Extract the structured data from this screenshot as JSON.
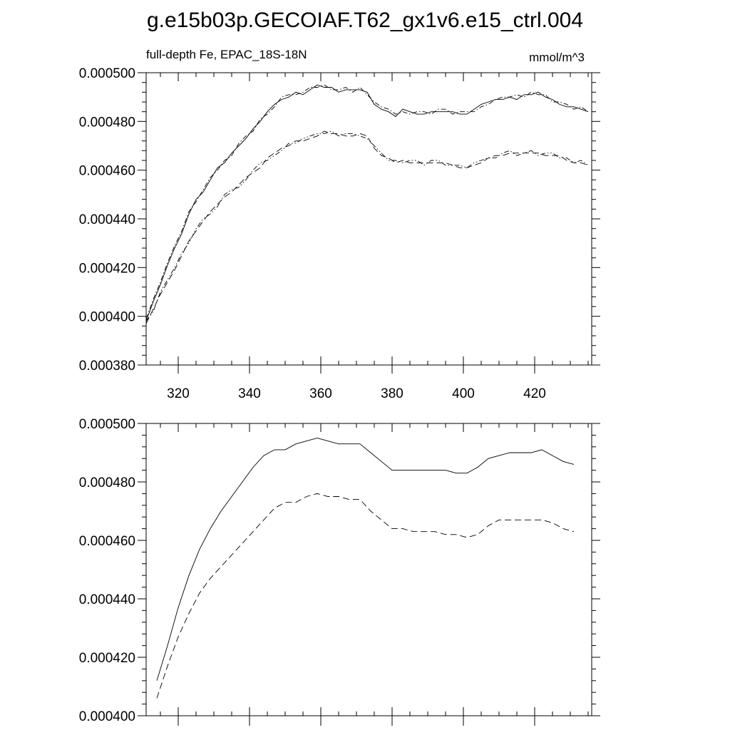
{
  "title": "g.e15b03p.GECOIAF.T62_gx1v6.e15_ctrl.004",
  "chart_data": [
    {
      "type": "line",
      "left_label": "full-depth Fe, EPAC_18S-18N",
      "right_label": "mmol/m^3",
      "xlim": [
        311,
        436
      ],
      "ylim": [
        0.00038,
        0.0005
      ],
      "x_ticks": [
        320,
        340,
        360,
        380,
        400,
        420
      ],
      "x_tick_labels": [
        "320",
        "340",
        "360",
        "380",
        "400",
        "420"
      ],
      "y_ticks": [
        0.00038,
        0.0004,
        0.00042,
        0.00044,
        0.00046,
        0.00048,
        0.0005
      ],
      "y_tick_labels": [
        "0.000380",
        "0.000400",
        "0.000420",
        "0.000440",
        "0.000460",
        "0.000480",
        "0.000500"
      ],
      "grid": false,
      "series": [
        {
          "style": "solid",
          "x": [
            311,
            313,
            315,
            317,
            319,
            321,
            323,
            325,
            327,
            329,
            331,
            333,
            335,
            337,
            339,
            341,
            343,
            345,
            347,
            349,
            351,
            353,
            355,
            357,
            359,
            361,
            363,
            365,
            367,
            369,
            371,
            373,
            375,
            377,
            379,
            381,
            383,
            385,
            387,
            389,
            391,
            393,
            395,
            397,
            399,
            401,
            403,
            405,
            407,
            409,
            411,
            413,
            415,
            417,
            419,
            421,
            423,
            425,
            427,
            429,
            431,
            433,
            435
          ],
          "y": [
            0.000398,
            0.000406,
            0.000413,
            0.000421,
            0.000428,
            0.000434,
            0.000442,
            0.000448,
            0.000451,
            0.000456,
            0.000461,
            0.000463,
            0.000467,
            0.00047,
            0.000473,
            0.000477,
            0.00048,
            0.000484,
            0.000487,
            0.000489,
            0.00049,
            0.000492,
            0.000491,
            0.000493,
            0.000495,
            0.000494,
            0.000494,
            0.000492,
            0.000493,
            0.000493,
            0.000493,
            0.000492,
            0.000487,
            0.000485,
            0.000484,
            0.000482,
            0.000485,
            0.000484,
            0.000483,
            0.000483,
            0.000484,
            0.000484,
            0.000484,
            0.000484,
            0.000483,
            0.000483,
            0.000485,
            0.000487,
            0.000488,
            0.000489,
            0.000489,
            0.00049,
            0.000489,
            0.000491,
            0.000491,
            0.000492,
            0.00049,
            0.000489,
            0.000487,
            0.000486,
            0.000486,
            0.000485,
            0.000484
          ]
        },
        {
          "style": "dash-dot",
          "x": [
            311,
            313,
            315,
            317,
            319,
            321,
            323,
            325,
            327,
            329,
            331,
            333,
            335,
            337,
            339,
            341,
            343,
            345,
            347,
            349,
            351,
            353,
            355,
            357,
            359,
            361,
            363,
            365,
            367,
            369,
            371,
            373,
            375,
            377,
            379,
            381,
            383,
            385,
            387,
            389,
            391,
            393,
            395,
            397,
            399,
            401,
            403,
            405,
            407,
            409,
            411,
            413,
            415,
            417,
            419,
            421,
            423,
            425,
            427,
            429,
            431,
            433,
            435
          ],
          "y": [
            0.000399,
            0.000407,
            0.000414,
            0.000422,
            0.000429,
            0.000435,
            0.000443,
            0.000447,
            0.000452,
            0.000457,
            0.00046,
            0.000464,
            0.000466,
            0.000471,
            0.000474,
            0.000476,
            0.000481,
            0.000483,
            0.000486,
            0.00049,
            0.000491,
            0.000491,
            0.000492,
            0.000494,
            0.000494,
            0.000495,
            0.000493,
            0.000493,
            0.000494,
            0.000492,
            0.000494,
            0.000491,
            0.000488,
            0.000486,
            0.000485,
            0.000483,
            0.000484,
            0.000483,
            0.000484,
            0.000484,
            0.000483,
            0.000485,
            0.000485,
            0.000483,
            0.000484,
            0.000484,
            0.000484,
            0.000486,
            0.000487,
            0.000489,
            0.00049,
            0.00049,
            0.000491,
            0.00049,
            0.000492,
            0.000491,
            0.000491,
            0.000488,
            0.000488,
            0.000487,
            0.000485,
            0.000486,
            0.000484
          ]
        },
        {
          "style": "dashed",
          "x": [
            311,
            313,
            315,
            317,
            319,
            321,
            323,
            325,
            327,
            329,
            331,
            333,
            335,
            337,
            339,
            341,
            343,
            345,
            347,
            349,
            351,
            353,
            355,
            357,
            359,
            361,
            363,
            365,
            367,
            369,
            371,
            373,
            375,
            377,
            379,
            381,
            383,
            385,
            387,
            389,
            391,
            393,
            395,
            397,
            399,
            401,
            403,
            405,
            407,
            409,
            411,
            413,
            415,
            417,
            419,
            421,
            423,
            425,
            427,
            429,
            431,
            433,
            435
          ],
          "y": [
            0.000397,
            0.000403,
            0.000409,
            0.000414,
            0.000419,
            0.000425,
            0.000431,
            0.000435,
            0.000439,
            0.000443,
            0.000446,
            0.000449,
            0.000451,
            0.000454,
            0.000457,
            0.000459,
            0.000461,
            0.000465,
            0.000467,
            0.000469,
            0.00047,
            0.000472,
            0.000472,
            0.000473,
            0.000474,
            0.000476,
            0.000475,
            0.000475,
            0.000474,
            0.000474,
            0.000475,
            0.000474,
            0.000469,
            0.000466,
            0.000465,
            0.000463,
            0.000464,
            0.000463,
            0.000463,
            0.000463,
            0.000463,
            0.000463,
            0.000463,
            0.000462,
            0.000461,
            0.000461,
            0.000462,
            0.000463,
            0.000465,
            0.000466,
            0.000466,
            0.000467,
            0.000467,
            0.000467,
            0.000467,
            0.000467,
            0.000466,
            0.000466,
            0.000466,
            0.000464,
            0.000463,
            0.000463,
            0.000462
          ]
        },
        {
          "style": "dash-dot-dot",
          "x": [
            311,
            313,
            315,
            317,
            319,
            321,
            323,
            325,
            327,
            329,
            331,
            333,
            335,
            337,
            339,
            341,
            343,
            345,
            347,
            349,
            351,
            353,
            355,
            357,
            359,
            361,
            363,
            365,
            367,
            369,
            371,
            373,
            375,
            377,
            379,
            381,
            383,
            385,
            387,
            389,
            391,
            393,
            395,
            397,
            399,
            401,
            403,
            405,
            407,
            409,
            411,
            413,
            415,
            417,
            419,
            421,
            423,
            425,
            427,
            429,
            431,
            433,
            435
          ],
          "y": [
            0.000398,
            0.000402,
            0.00041,
            0.000415,
            0.00042,
            0.000426,
            0.00043,
            0.000436,
            0.00044,
            0.000442,
            0.000445,
            0.00045,
            0.000452,
            0.000453,
            0.000456,
            0.00046,
            0.000463,
            0.000464,
            0.000466,
            0.000468,
            0.000471,
            0.000471,
            0.000473,
            0.000474,
            0.000475,
            0.000475,
            0.000476,
            0.000474,
            0.000475,
            0.000475,
            0.000474,
            0.000473,
            0.00047,
            0.000467,
            0.000464,
            0.000464,
            0.000463,
            0.000464,
            0.000464,
            0.000462,
            0.000464,
            0.000464,
            0.000462,
            0.000462,
            0.000462,
            0.000461,
            0.000463,
            0.000464,
            0.000465,
            0.000465,
            0.000467,
            0.000468,
            0.000466,
            0.000467,
            0.000468,
            0.000466,
            0.000467,
            0.000467,
            0.000465,
            0.000465,
            0.000463,
            0.000464,
            0.000462
          ]
        }
      ]
    },
    {
      "type": "line",
      "xlim": [
        311,
        436
      ],
      "ylim": [
        0.0004,
        0.0005
      ],
      "x_ticks": [
        320,
        340,
        360,
        380,
        400,
        420
      ],
      "y_ticks": [
        0.0004,
        0.00042,
        0.00044,
        0.00046,
        0.00048,
        0.0005
      ],
      "y_tick_labels": [
        "0.000400",
        "0.000420",
        "0.000440",
        "0.000460",
        "0.000480",
        "0.000500"
      ],
      "grid": false,
      "series": [
        {
          "style": "solid",
          "x": [
            314,
            317,
            320,
            323,
            326,
            329,
            332,
            335,
            338,
            341,
            344,
            347,
            350,
            353,
            356,
            359,
            362,
            365,
            368,
            371,
            374,
            377,
            380,
            383,
            386,
            389,
            392,
            395,
            398,
            401,
            404,
            407,
            410,
            413,
            416,
            419,
            422,
            425,
            428,
            431
          ],
          "y": [
            0.000412,
            0.000424,
            0.000437,
            0.000448,
            0.000457,
            0.000464,
            0.00047,
            0.000475,
            0.00048,
            0.000485,
            0.000489,
            0.000491,
            0.000491,
            0.000493,
            0.000494,
            0.000495,
            0.000494,
            0.000493,
            0.000493,
            0.000493,
            0.00049,
            0.000487,
            0.000484,
            0.000484,
            0.000484,
            0.000484,
            0.000484,
            0.000484,
            0.000483,
            0.000483,
            0.000485,
            0.000488,
            0.000489,
            0.00049,
            0.00049,
            0.00049,
            0.000491,
            0.000489,
            0.000487,
            0.000486
          ]
        },
        {
          "style": "dashed",
          "x": [
            314,
            317,
            320,
            323,
            326,
            329,
            332,
            335,
            338,
            341,
            344,
            347,
            350,
            353,
            356,
            359,
            362,
            365,
            368,
            371,
            374,
            377,
            380,
            383,
            386,
            389,
            392,
            395,
            398,
            401,
            404,
            407,
            410,
            413,
            416,
            419,
            422,
            425,
            428,
            431
          ],
          "y": [
            0.000406,
            0.000417,
            0.000427,
            0.000435,
            0.000442,
            0.000447,
            0.000451,
            0.000455,
            0.000459,
            0.000463,
            0.000467,
            0.000471,
            0.000473,
            0.000473,
            0.000475,
            0.000476,
            0.000475,
            0.000475,
            0.000474,
            0.000474,
            0.00047,
            0.000467,
            0.000464,
            0.000464,
            0.000463,
            0.000463,
            0.000463,
            0.000462,
            0.000462,
            0.000461,
            0.000462,
            0.000465,
            0.000467,
            0.000467,
            0.000467,
            0.000467,
            0.000467,
            0.000466,
            0.000464,
            0.000463
          ]
        }
      ]
    }
  ]
}
